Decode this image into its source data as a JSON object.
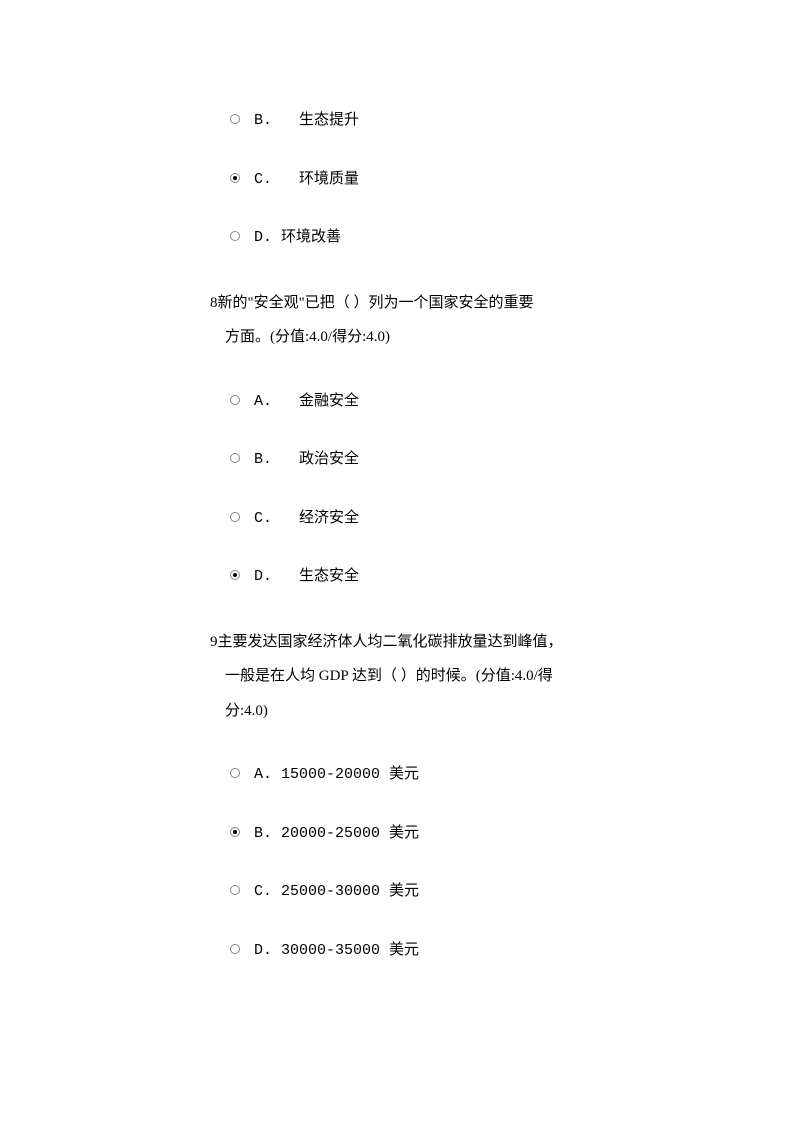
{
  "orphan_options": [
    {
      "letter": "B.",
      "text": "生态提升",
      "checked": false,
      "spacing": "   "
    },
    {
      "letter": "C.",
      "text": "环境质量",
      "checked": true,
      "spacing": "   "
    },
    {
      "letter": "D.",
      "text": "环境改善",
      "checked": false,
      "spacing": " "
    }
  ],
  "questions": [
    {
      "number": "8",
      "line1": "新的\"安全观\"已把（  ）列为一个国家安全的重要",
      "line2": "方面。(分值:4.0/得分:4.0)",
      "options": [
        {
          "letter": "A.",
          "text": "金融安全",
          "checked": false,
          "spacing": "   "
        },
        {
          "letter": "B.",
          "text": "政治安全",
          "checked": false,
          "spacing": "   "
        },
        {
          "letter": "C.",
          "text": "经济安全",
          "checked": false,
          "spacing": "   "
        },
        {
          "letter": "D.",
          "text": "生态安全",
          "checked": true,
          "spacing": "   "
        }
      ]
    },
    {
      "number": "9",
      "line1": "主要发达国家经济体人均二氧化碳排放量达到峰值，",
      "line2": "一般是在人均 GDP 达到（  ）的时候。(分值:4.0/得",
      "line3": "分:4.0)",
      "options": [
        {
          "letter": "A.",
          "text": "15000-20000 美元",
          "checked": false,
          "spacing": " "
        },
        {
          "letter": "B.",
          "text": "20000-25000 美元",
          "checked": true,
          "spacing": " "
        },
        {
          "letter": "C.",
          "text": "25000-30000 美元",
          "checked": false,
          "spacing": " "
        },
        {
          "letter": "D.",
          "text": "30000-35000 美元",
          "checked": false,
          "spacing": " "
        }
      ]
    }
  ]
}
